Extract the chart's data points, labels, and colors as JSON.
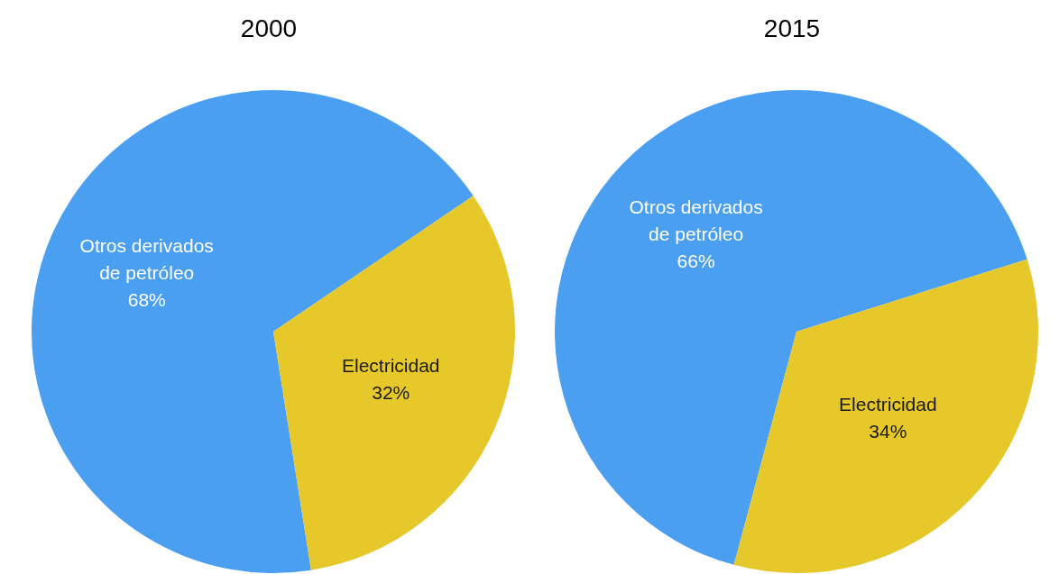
{
  "chart_data": [
    {
      "type": "pie",
      "title": "2000",
      "categories": [
        "Otros derivados de petróleo",
        "Electricidad"
      ],
      "values": [
        68,
        32
      ],
      "value_labels": [
        "68%",
        "32%"
      ],
      "colors": [
        "#4a9ff0",
        "#e6c82a"
      ],
      "legend": false
    },
    {
      "type": "pie",
      "title": "2015",
      "categories": [
        "Otros derivados de petróleo",
        "Electricidad"
      ],
      "values": [
        66,
        34
      ],
      "value_labels": [
        "66%",
        "34%"
      ],
      "colors": [
        "#4a9ff0",
        "#e6c82a"
      ],
      "legend": false
    }
  ]
}
